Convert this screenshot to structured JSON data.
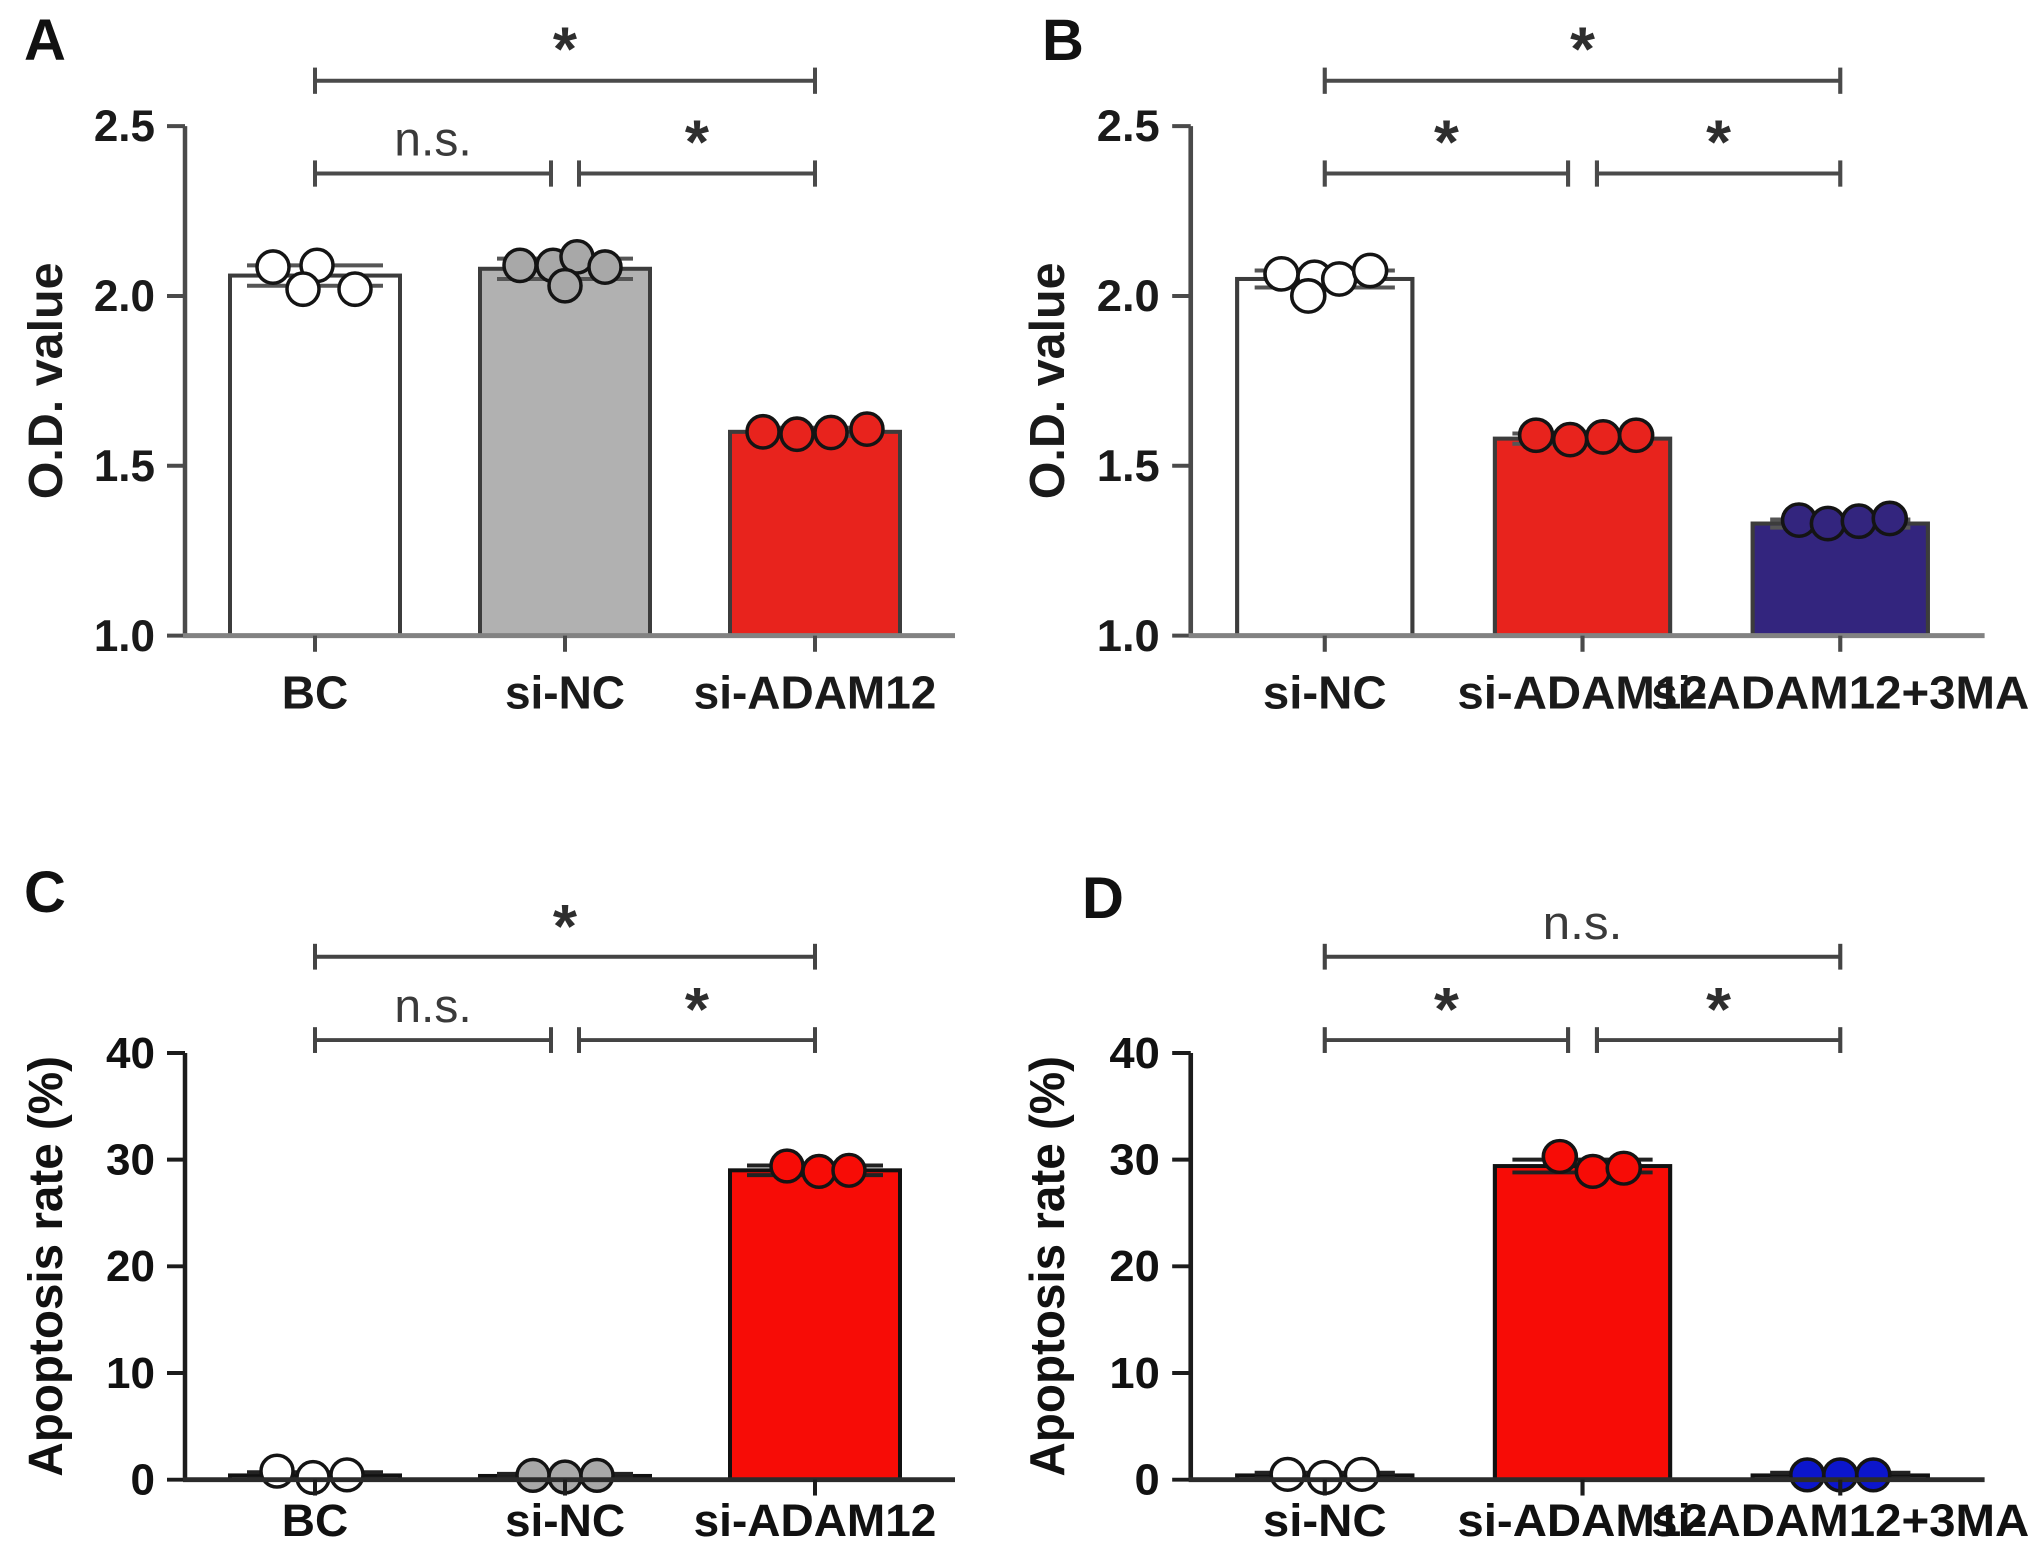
{
  "figure_title": "",
  "chart_data": [
    {
      "panel": "A",
      "type": "bar",
      "letter": "A",
      "ylabel": "O.D. value",
      "xlabel": "",
      "ylim": [
        1.0,
        2.5
      ],
      "yticks": [
        1.0,
        1.5,
        2.0,
        2.5
      ],
      "ytick_labels": [
        "1.0",
        "1.5",
        "2.0",
        "2.5"
      ],
      "categories": [
        "BC",
        "si-NC",
        "si-ADAM12"
      ],
      "values": [
        2.06,
        2.08,
        1.6
      ],
      "errors": [
        0.03,
        0.03,
        0.012
      ],
      "bar_fills": [
        "#ffffff",
        "#b1b1b1",
        "#e8231d"
      ],
      "point_fills": [
        "#ffffff",
        "#a8a8a8",
        "#e8231d"
      ],
      "points": [
        [
          [
            -42,
            2.085
          ],
          [
            2,
            2.09
          ],
          [
            -12,
            2.02
          ],
          [
            40,
            2.02
          ]
        ],
        [
          [
            -45,
            2.09
          ],
          [
            -12,
            2.09
          ],
          [
            12,
            2.115
          ],
          [
            40,
            2.085
          ],
          [
            0,
            2.03
          ]
        ],
        [
          [
            -52,
            1.6
          ],
          [
            -18,
            1.593
          ],
          [
            16,
            1.598
          ],
          [
            52,
            1.608
          ]
        ]
      ],
      "brackets": [
        {
          "from": 0,
          "to": 2,
          "label": "*",
          "row": "upper"
        },
        {
          "from": 0,
          "to": 1,
          "label": "n.s.",
          "row": "lower"
        },
        {
          "from": 1,
          "to": 2,
          "label": "*",
          "row": "lower"
        }
      ],
      "colors": {
        "y_axis": "#4a4a4a",
        "x_axis": "#828282",
        "bar_stroke": "#3c3c3c",
        "bracket": "#4a4a4a",
        "error": "#555555",
        "text": "#1a1a1a",
        "sig": "#2e2e2e"
      }
    },
    {
      "panel": "B",
      "type": "bar",
      "letter": "B",
      "ylabel": "O.D. value",
      "xlabel": "",
      "ylim": [
        1.0,
        2.5
      ],
      "yticks": [
        1.0,
        1.5,
        2.0,
        2.5
      ],
      "ytick_labels": [
        "1.0",
        "1.5",
        "2.0",
        "2.5"
      ],
      "categories": [
        "si-NC",
        "si-ADAM12",
        "si-ADAM12+3MA"
      ],
      "values": [
        2.05,
        1.58,
        1.33
      ],
      "errors": [
        0.025,
        0.015,
        0.012
      ],
      "bar_fills": [
        "#ffffff",
        "#e8231d",
        "#33257e"
      ],
      "point_fills": [
        "#ffffff",
        "#e8231d",
        "#33257e"
      ],
      "points": [
        [
          [
            -42,
            2.065
          ],
          [
            -10,
            2.055
          ],
          [
            14,
            2.05
          ],
          [
            44,
            2.075
          ],
          [
            -16,
            2.0
          ]
        ],
        [
          [
            -45,
            1.59
          ],
          [
            -12,
            1.577
          ],
          [
            20,
            1.585
          ],
          [
            52,
            1.59
          ]
        ],
        [
          [
            -40,
            1.34
          ],
          [
            -12,
            1.33
          ],
          [
            18,
            1.337
          ],
          [
            48,
            1.345
          ]
        ]
      ],
      "brackets": [
        {
          "from": 0,
          "to": 2,
          "label": "*",
          "row": "upper"
        },
        {
          "from": 0,
          "to": 1,
          "label": "*",
          "row": "lower"
        },
        {
          "from": 1,
          "to": 2,
          "label": "*",
          "row": "lower"
        }
      ],
      "colors": {
        "y_axis": "#4a4a4a",
        "x_axis": "#828282",
        "bar_stroke": "#3c3c3c",
        "bracket": "#4a4a4a",
        "error": "#555555",
        "text": "#1a1a1a",
        "sig": "#2e2e2e"
      }
    },
    {
      "panel": "C",
      "type": "bar",
      "letter": "C",
      "ylabel": "Apoptosis rate (%)",
      "xlabel": "",
      "ylim": [
        0,
        40
      ],
      "yticks": [
        0,
        10,
        20,
        30,
        40
      ],
      "ytick_labels": [
        "0",
        "10",
        "20",
        "30",
        "40"
      ],
      "categories": [
        "BC",
        "si-NC",
        "si-ADAM12"
      ],
      "values": [
        0.4,
        0.35,
        29.0
      ],
      "errors": [
        0.3,
        0.2,
        0.45
      ],
      "bar_fills": [
        "#ffffff",
        "#ffffff",
        "#f70c06"
      ],
      "point_fills": [
        "#ffffff",
        "#a8a8a8",
        "#f70c06"
      ],
      "points": [
        [
          [
            -38,
            0.8
          ],
          [
            -2,
            0.2
          ],
          [
            32,
            0.45
          ]
        ],
        [
          [
            -32,
            0.4
          ],
          [
            0,
            0.25
          ],
          [
            32,
            0.4
          ]
        ],
        [
          [
            -28,
            29.4
          ],
          [
            4,
            28.9
          ],
          [
            34,
            29.0
          ]
        ]
      ],
      "brackets": [
        {
          "from": 0,
          "to": 2,
          "label": "*",
          "row": "upper"
        },
        {
          "from": 0,
          "to": 1,
          "label": "n.s.",
          "row": "lower"
        },
        {
          "from": 1,
          "to": 2,
          "label": "*",
          "row": "lower"
        }
      ],
      "colors": {
        "y_axis": "#1c1c1c",
        "x_axis": "#2b2b2b",
        "bar_stroke": "#111111",
        "bracket": "#444444",
        "error": "#222222",
        "text": "#111111",
        "sig": "#2e2e2e"
      }
    },
    {
      "panel": "D",
      "type": "bar",
      "letter": "D",
      "ylabel": "Apoptosis rate (%)",
      "xlabel": "",
      "ylim": [
        0,
        40
      ],
      "yticks": [
        0,
        10,
        20,
        30,
        40
      ],
      "ytick_labels": [
        "0",
        "10",
        "20",
        "30",
        "40"
      ],
      "categories": [
        "si-NC",
        "si-ADAM12",
        "si-ADAM12+3MA"
      ],
      "values": [
        0.4,
        29.4,
        0.4
      ],
      "errors": [
        0.25,
        0.6,
        0.25
      ],
      "bar_fills": [
        "#ffffff",
        "#f70c06",
        "#ffffff"
      ],
      "point_fills": [
        "#ffffff",
        "#f70c06",
        "#0c16cc"
      ],
      "points": [
        [
          [
            -36,
            0.5
          ],
          [
            0,
            0.2
          ],
          [
            36,
            0.5
          ]
        ],
        [
          [
            -22,
            30.3
          ],
          [
            10,
            28.9
          ],
          [
            40,
            29.2
          ]
        ],
        [
          [
            -32,
            0.45
          ],
          [
            0,
            0.45
          ],
          [
            32,
            0.45
          ]
        ]
      ],
      "brackets": [
        {
          "from": 0,
          "to": 2,
          "label": "n.s.",
          "row": "upper"
        },
        {
          "from": 0,
          "to": 1,
          "label": "*",
          "row": "lower"
        },
        {
          "from": 1,
          "to": 2,
          "label": "*",
          "row": "lower"
        }
      ],
      "colors": {
        "y_axis": "#1c1c1c",
        "x_axis": "#2b2b2b",
        "bar_stroke": "#111111",
        "bracket": "#444444",
        "error": "#222222",
        "text": "#111111",
        "sig": "#2e2e2e"
      }
    }
  ]
}
